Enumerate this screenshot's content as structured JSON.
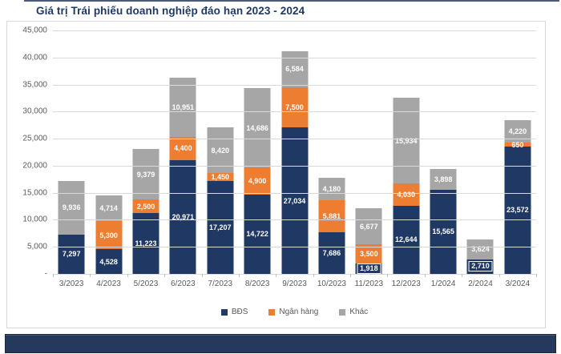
{
  "title": "Giá trị Trái phiếu doanh nghiệp đáo hạn 2023 - 2024",
  "colors": {
    "bds": "#1f3864",
    "ngan_hang": "#ed7d31",
    "khac": "#a6a6a6",
    "gridline": "#d9d9d9",
    "axis_text": "#595959",
    "title_text": "#1f3864",
    "footer_bar": "#24395c"
  },
  "chart_data": {
    "type": "bar",
    "stacked": true,
    "title": "Giá trị Trái phiếu doanh nghiệp đáo hạn 2023 - 2024",
    "categories": [
      "3/2023",
      "4/2023",
      "5/2023",
      "6/2023",
      "7/2023",
      "8/2023",
      "9/2023",
      "10/2023",
      "11/2023",
      "12/2023",
      "1/2024",
      "2/2024",
      "3/2024"
    ],
    "series": [
      {
        "name": "BĐS",
        "color": "#1f3864",
        "values": [
          7297,
          4528,
          11223,
          20971,
          17207,
          14722,
          27034,
          7686,
          1918,
          12644,
          15565,
          2710,
          23572
        ]
      },
      {
        "name": "Ngân hàng",
        "color": "#ed7d31",
        "values": [
          0,
          5300,
          2500,
          4400,
          1450,
          4900,
          7500,
          5881,
          3500,
          4030,
          0,
          0,
          650
        ]
      },
      {
        "name": "Khác",
        "color": "#a6a6a6",
        "values": [
          9936,
          4714,
          9379,
          10951,
          8420,
          14686,
          6584,
          4180,
          6677,
          15934,
          3898,
          3624,
          4220
        ]
      }
    ],
    "xlabel": "",
    "ylabel": "",
    "ylim": [
      0,
      45000
    ],
    "ytick_step": 5000,
    "ytick_zero_label": "-",
    "grid": true,
    "legend_position": "bottom",
    "data_labels": true
  }
}
